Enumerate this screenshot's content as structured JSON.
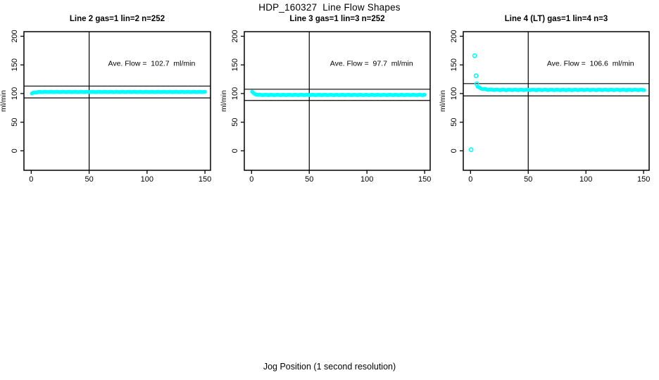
{
  "figure": {
    "title": "HDP_160327  Line Flow Shapes",
    "x_axis_label": "Jog Position (1 second resolution)",
    "y_axis_label": "ml/min",
    "point_color": "#00FFFF",
    "axis_color": "#000000",
    "background_color": "#FFFFFF"
  },
  "chart_data": [
    {
      "type": "scatter",
      "title": "Line 2 gas=1 lin=2 n=252",
      "ave_flow_ml_min": 102.7,
      "n_points_label": 252,
      "annotation": {
        "text": "Ave. Flow =  102.7  ml/min",
        "x": 104,
        "y": 153
      },
      "xlabel": "Jog Position (1 second resolution)",
      "ylabel": "ml/min",
      "xlim": [
        -6.3,
        154.8
      ],
      "ylim": [
        -34,
        208
      ],
      "x_ticks": [
        0,
        50,
        100,
        150
      ],
      "y_ticks": [
        0,
        50,
        100,
        150,
        200
      ],
      "x_tick_labels": [
        "0",
        "50",
        "100",
        "150"
      ],
      "y_tick_labels": [
        "0",
        "50",
        "100",
        "150",
        "200"
      ],
      "h_ref_lines": [
        113.0,
        92.4
      ],
      "v_ref_line": 50,
      "grid": false,
      "legend": false,
      "series": {
        "band": {
          "x_start": 0.5,
          "x_end": 150,
          "n_points": 252,
          "y_initial": 100.2,
          "y_settled": 102.8,
          "settle_rate": 2.5,
          "wiggle": 0.3
        },
        "outliers": []
      }
    },
    {
      "type": "scatter",
      "title": "Line 3 gas=1 lin=3 n=252",
      "ave_flow_ml_min": 97.7,
      "n_points_label": 252,
      "annotation": {
        "text": "Ave. Flow =  97.7  ml/min",
        "x": 104,
        "y": 153
      },
      "xlabel": "Jog Position (1 second resolution)",
      "ylabel": "ml/min",
      "xlim": [
        -6.3,
        154.8
      ],
      "ylim": [
        -34,
        208
      ],
      "x_ticks": [
        0,
        50,
        100,
        150
      ],
      "y_ticks": [
        0,
        50,
        100,
        150,
        200
      ],
      "x_tick_labels": [
        "0",
        "50",
        "100",
        "150"
      ],
      "y_tick_labels": [
        "0",
        "50",
        "100",
        "150",
        "200"
      ],
      "h_ref_lines": [
        107.5,
        87.9
      ],
      "v_ref_line": 50,
      "grid": false,
      "legend": false,
      "series": {
        "band": {
          "x_start": 0.5,
          "x_end": 150,
          "n_points": 252,
          "y_initial": 103.2,
          "y_settled": 97.6,
          "settle_rate": 1.8,
          "wiggle": 0.3
        },
        "outliers": []
      }
    },
    {
      "type": "scatter",
      "title": "Line 4 (LT) gas=1 lin=4 n=3",
      "ave_flow_ml_min": 106.6,
      "n_points_label": 3,
      "annotation": {
        "text": "Ave. Flow =  106.6  ml/min",
        "x": 104,
        "y": 153
      },
      "xlabel": "Jog Position (1 second resolution)",
      "ylabel": "ml/min",
      "xlim": [
        -6.3,
        154.8
      ],
      "ylim": [
        -34,
        208
      ],
      "x_ticks": [
        0,
        50,
        100,
        150
      ],
      "y_ticks": [
        0,
        50,
        100,
        150,
        200
      ],
      "x_tick_labels": [
        "0",
        "50",
        "100",
        "150"
      ],
      "y_tick_labels": [
        "0",
        "50",
        "100",
        "150",
        "200"
      ],
      "h_ref_lines": [
        117.3,
        95.9
      ],
      "v_ref_line": 50,
      "grid": false,
      "legend": false,
      "series": {
        "band": {
          "x_start": 6,
          "x_end": 150.5,
          "n_points": 240,
          "y_initial": 112,
          "y_settled": 106.4,
          "settle_rate": 4,
          "wiggle": 0.45
        },
        "outliers": [
          [
            0.5,
            2
          ],
          [
            3.6,
            166
          ],
          [
            4.8,
            131
          ],
          [
            5.4,
            117
          ]
        ]
      }
    }
  ]
}
